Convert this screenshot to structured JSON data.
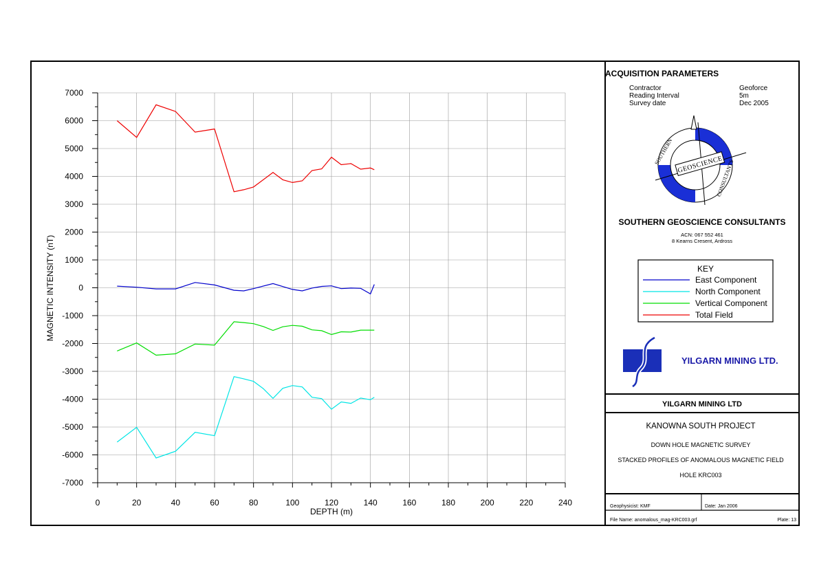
{
  "acquisition": {
    "title": "ACQUISITION PARAMETERS",
    "rows": [
      {
        "label": "Contractor",
        "value": "Geoforce"
      },
      {
        "label": "Reading Interval",
        "value": "5m"
      },
      {
        "label": "Survey date",
        "value": "Dec 2005"
      }
    ]
  },
  "logo": {
    "ring_top": "SOUTHERN",
    "band": "GEOSCIENCE",
    "ring_bottom": "CONSULTANTS",
    "ring_color": "#1a2fd6"
  },
  "company": {
    "name": "SOUTHERN GEOSCIENCE CONSULTANTS",
    "acn": "ACN: 067 552 461",
    "address": "8 Kearns Cresent, Ardross"
  },
  "key": {
    "title": "KEY",
    "items": [
      {
        "label": "East Component",
        "color": "#0000cc"
      },
      {
        "label": "North Component",
        "color": "#00e5e5"
      },
      {
        "label": "Vertical Component",
        "color": "#00dd00"
      },
      {
        "label": "Total Field",
        "color": "#ee0000"
      }
    ]
  },
  "client": {
    "logo_text": "YILGARN MINING LTD.",
    "logo_color": "#1a1aa8",
    "name": "YILGARN MINING LTD"
  },
  "project": {
    "name": "KANOWNA SOUTH PROJECT",
    "survey": "DOWN HOLE MAGNETIC SURVEY",
    "description": "STACKED PROFILES OF ANOMALOUS MAGNETIC FIELD",
    "hole": "HOLE KRC003"
  },
  "footer": {
    "geophysicist": "Geophysicist: KMF",
    "date": "Date: Jan 2006",
    "filename": "File Name: anomalous_mag-KRC003.grf",
    "plate": "Plate: 13"
  },
  "chart_data": {
    "type": "line",
    "xlabel": "DEPTH (m)",
    "ylabel": "MAGNETIC INTENSITY (nT)",
    "xlim": [
      0,
      240
    ],
    "ylim": [
      -7000,
      7000
    ],
    "xticks": [
      0,
      20,
      40,
      60,
      80,
      100,
      120,
      140,
      160,
      180,
      200,
      220,
      240
    ],
    "yticks": [
      7000,
      6000,
      5000,
      4000,
      3000,
      2000,
      1000,
      0,
      -1000,
      -2000,
      -3000,
      -4000,
      -5000,
      -6000,
      -7000
    ],
    "grid": true,
    "series": [
      {
        "name": "Total Field",
        "color": "#ee0000",
        "x": [
          10,
          20,
          30,
          40,
          50,
          60,
          70,
          75,
          80,
          90,
          95,
          100,
          105,
          110,
          115,
          120,
          125,
          130,
          135,
          140,
          142
        ],
        "y": [
          6000,
          5400,
          6570,
          6330,
          5590,
          5700,
          3450,
          3520,
          3620,
          4140,
          3880,
          3780,
          3840,
          4210,
          4270,
          4690,
          4420,
          4460,
          4260,
          4300,
          4240
        ]
      },
      {
        "name": "East Component",
        "color": "#0000cc",
        "x": [
          10,
          20,
          30,
          40,
          50,
          60,
          70,
          75,
          80,
          90,
          100,
          105,
          110,
          115,
          120,
          125,
          130,
          135,
          140,
          142
        ],
        "y": [
          60,
          20,
          -40,
          -40,
          190,
          100,
          -90,
          -110,
          -30,
          150,
          -60,
          -110,
          -10,
          50,
          70,
          -30,
          -10,
          -20,
          -220,
          120
        ]
      },
      {
        "name": "Vertical Component",
        "color": "#00dd00",
        "x": [
          10,
          20,
          30,
          40,
          50,
          60,
          70,
          75,
          80,
          85,
          90,
          95,
          100,
          105,
          110,
          115,
          120,
          125,
          130,
          135,
          140,
          142
        ],
        "y": [
          -2270,
          -1980,
          -2420,
          -2370,
          -2020,
          -2060,
          -1220,
          -1250,
          -1290,
          -1390,
          -1530,
          -1400,
          -1350,
          -1380,
          -1510,
          -1540,
          -1680,
          -1580,
          -1590,
          -1520,
          -1520,
          -1520
        ]
      },
      {
        "name": "North Component",
        "color": "#00e5e5",
        "x": [
          10,
          20,
          30,
          40,
          50,
          60,
          70,
          75,
          80,
          85,
          90,
          95,
          100,
          105,
          110,
          115,
          120,
          125,
          130,
          135,
          140,
          142
        ],
        "y": [
          -5540,
          -5010,
          -6110,
          -5870,
          -5190,
          -5310,
          -3190,
          -3270,
          -3360,
          -3620,
          -3970,
          -3610,
          -3510,
          -3560,
          -3930,
          -3980,
          -4360,
          -4100,
          -4150,
          -3960,
          -4020,
          -3930
        ]
      }
    ]
  }
}
